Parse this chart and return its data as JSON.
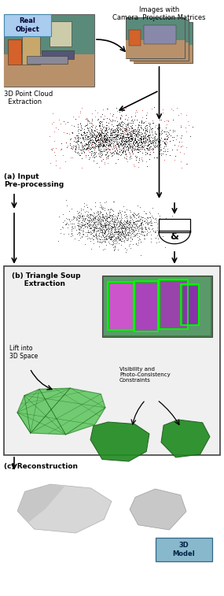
{
  "fig_width": 2.85,
  "fig_height": 7.57,
  "dpi": 100,
  "bg_color": "#ffffff",
  "label_real_object": "Real\nObject",
  "label_images": "Images with\nCamera  Projection Matrices",
  "label_3d_point_cloud": "3D Point Cloud\n  Extraction",
  "label_a": "(a) Input\nPre-processing",
  "label_b": "(b) Triangle Soup\n     Extraction",
  "label_lift": "Lift into\n3D Space",
  "label_visibility": "Visibility and\nPhoto-Consistency\nConstraints",
  "label_c": "(c) Reconstruction",
  "label_3d_model": "3D\nModel",
  "bg_color_b": "#f0f0f0",
  "border_color_b": "#444444",
  "green_dark": "#1a7a1a",
  "green_mid": "#2d9e2d",
  "green_light": "#4dc44d",
  "gray_model": "#c8c8c8",
  "gray_dark": "#888888"
}
